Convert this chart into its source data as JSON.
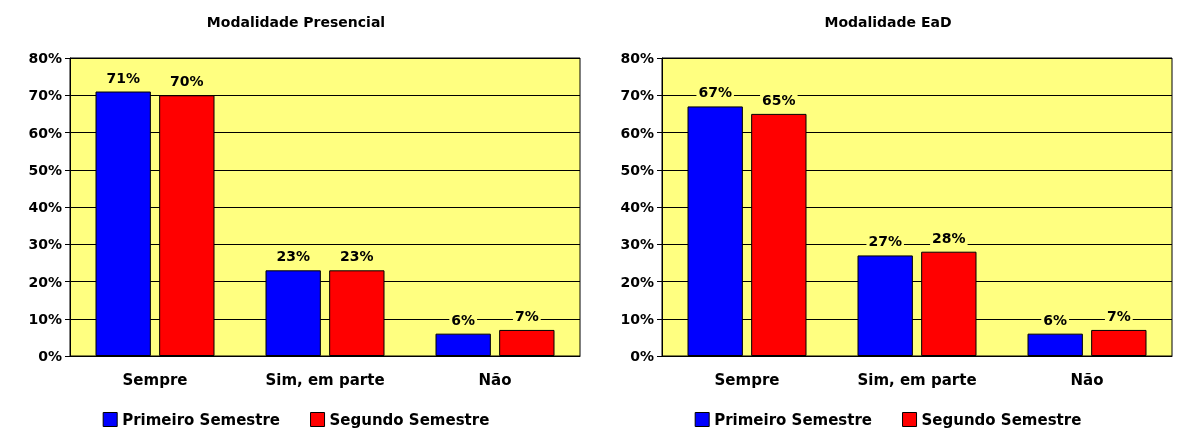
{
  "chart_data": [
    {
      "type": "bar",
      "title": "Modalidade Presencial",
      "categories": [
        "Sempre",
        "Sim, em parte",
        "Não"
      ],
      "series": [
        {
          "name": "Primeiro Semestre",
          "color": "#0000ff",
          "values": [
            71,
            23,
            6
          ],
          "value_labels": [
            "71%",
            "23%",
            "6%"
          ]
        },
        {
          "name": "Segundo Semestre",
          "color": "#ff0000",
          "values": [
            70,
            23,
            7
          ],
          "value_labels": [
            "70%",
            "23%",
            "7%"
          ]
        }
      ],
      "ylim": [
        0,
        80
      ],
      "yticks": [
        {
          "value": 0,
          "label": "0%"
        },
        {
          "value": 10,
          "label": "10%"
        },
        {
          "value": 20,
          "label": "20%"
        },
        {
          "value": 30,
          "label": "30%"
        },
        {
          "value": 40,
          "label": "40%"
        },
        {
          "value": 50,
          "label": "50%"
        },
        {
          "value": 60,
          "label": "60%"
        },
        {
          "value": 70,
          "label": "70%"
        },
        {
          "value": 80,
          "label": "80%"
        }
      ],
      "grid": "y",
      "legend": "bottom"
    },
    {
      "type": "bar",
      "title": "Modalidade EaD",
      "categories": [
        "Sempre",
        "Sim, em parte",
        "Não"
      ],
      "series": [
        {
          "name": "Primeiro Semestre",
          "color": "#0000ff",
          "values": [
            67,
            27,
            6
          ],
          "value_labels": [
            "67%",
            "27%",
            "6%"
          ]
        },
        {
          "name": "Segundo Semestre",
          "color": "#ff0000",
          "values": [
            65,
            28,
            7
          ],
          "value_labels": [
            "65%",
            "28%",
            "7%"
          ]
        }
      ],
      "ylim": [
        0,
        80
      ],
      "yticks": [
        {
          "value": 0,
          "label": "0%"
        },
        {
          "value": 10,
          "label": "10%"
        },
        {
          "value": 20,
          "label": "20%"
        },
        {
          "value": 30,
          "label": "30%"
        },
        {
          "value": 40,
          "label": "40%"
        },
        {
          "value": 50,
          "label": "50%"
        },
        {
          "value": 60,
          "label": "60%"
        },
        {
          "value": 70,
          "label": "70%"
        },
        {
          "value": 80,
          "label": "80%"
        }
      ],
      "grid": "y",
      "legend": "bottom"
    }
  ]
}
